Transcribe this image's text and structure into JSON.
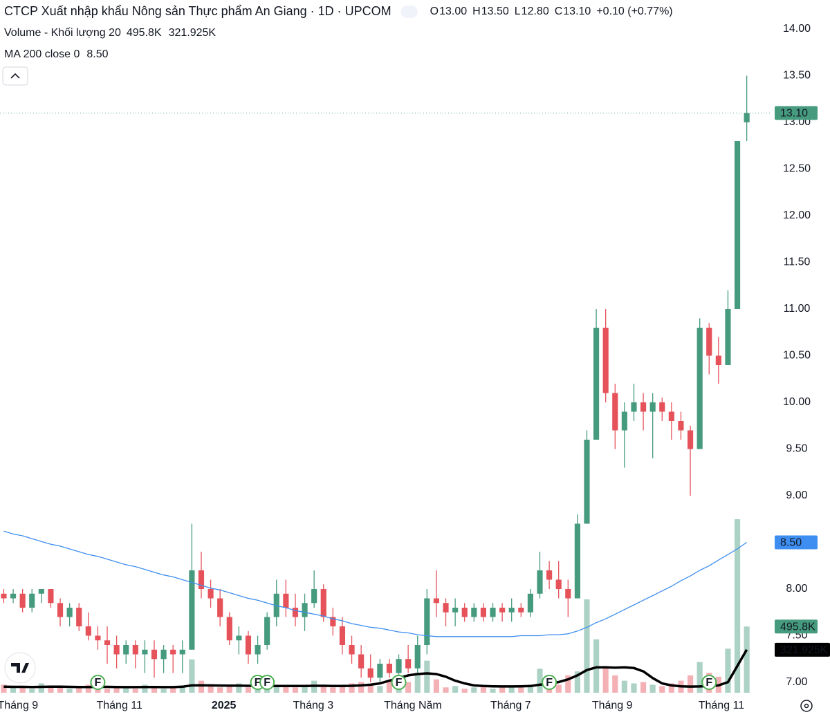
{
  "chart_data": {
    "type": "candlestick",
    "title": "CTCP Xuất nhập khẩu Nông sản Thực phẩm An Giang · 1D · UPCOM",
    "ohlc": [
      {
        "key": "O",
        "value": 13,
        "label": "13.00"
      },
      {
        "key": "H",
        "value": 13.5,
        "label": "13.50"
      },
      {
        "key": "L",
        "value": 12.8,
        "label": "12.80"
      },
      {
        "key": "C",
        "value": 13.1,
        "label": "13.10"
      }
    ],
    "change_label": "+0.10 (+0.77%)",
    "colors": {
      "up": "#469b7e",
      "down": "#e5525a",
      "ma": "#3d8ef0",
      "vol_ma": "#000000"
    },
    "open": [
      7.95,
      7.9,
      7.95,
      7.8,
      7.95,
      8.0,
      7.85,
      7.7,
      7.8,
      7.6,
      7.5,
      7.45,
      7.4,
      7.3,
      7.4,
      7.3,
      7.35,
      7.25,
      7.35,
      7.3,
      7.35,
      8.2,
      8.0,
      7.9,
      7.7,
      7.45,
      7.5,
      7.3,
      7.4,
      7.7,
      7.95,
      7.8,
      7.7,
      7.85,
      8.0,
      7.7,
      7.6,
      7.4,
      7.3,
      7.15,
      7.05,
      7.2,
      7.1,
      7.25,
      7.15,
      7.4,
      7.9,
      7.85,
      7.75,
      7.8,
      7.7,
      7.8,
      7.7,
      7.8,
      7.75,
      7.8,
      7.75,
      7.95,
      8.2,
      8.1,
      8.0,
      7.9,
      8.7,
      9.6,
      10.8,
      10.1,
      9.7,
      9.9,
      10.0,
      9.9,
      10.0,
      9.9,
      9.8,
      9.7,
      9.5,
      10.8,
      10.5,
      10.4,
      11.0,
      13
    ],
    "high": [
      8.0,
      8.0,
      8.0,
      8.0,
      8.0,
      8.0,
      7.9,
      7.85,
      7.85,
      7.75,
      7.6,
      7.6,
      7.5,
      7.45,
      7.45,
      7.45,
      7.45,
      7.4,
      7.4,
      7.45,
      8.7,
      8.4,
      8.1,
      8.0,
      7.75,
      7.6,
      7.55,
      7.5,
      7.75,
      8.1,
      8.1,
      7.95,
      7.95,
      8.2,
      8.05,
      7.8,
      7.7,
      7.5,
      7.4,
      7.3,
      7.25,
      7.25,
      7.3,
      7.4,
      7.5,
      8.0,
      8.2,
      7.9,
      7.9,
      7.85,
      7.85,
      7.85,
      7.85,
      7.85,
      7.9,
      7.85,
      8.0,
      8.4,
      8.3,
      8.3,
      8.1,
      8.8,
      9.7,
      11.0,
      11.0,
      10.2,
      10.0,
      10.2,
      10.1,
      10.1,
      10.05,
      10.0,
      9.9,
      9.75,
      10.9,
      10.85,
      10.7,
      11.2,
      12.8,
      13.5
    ],
    "low": [
      7.85,
      7.85,
      7.75,
      7.75,
      7.85,
      7.8,
      7.6,
      7.6,
      7.55,
      7.45,
      7.35,
      7.2,
      7.15,
      7.2,
      7.15,
      7.1,
      7.05,
      7.1,
      7.1,
      7.1,
      7.35,
      7.9,
      7.8,
      7.6,
      7.4,
      7.3,
      7.2,
      7.2,
      7.35,
      7.6,
      7.7,
      7.6,
      7.55,
      7.8,
      7.65,
      7.5,
      7.3,
      7.2,
      7.05,
      7.0,
      7.0,
      7.05,
      7.05,
      7.1,
      7.1,
      7.3,
      7.7,
      7.6,
      7.6,
      7.65,
      7.65,
      7.65,
      7.65,
      7.65,
      7.65,
      7.7,
      7.7,
      7.9,
      8.0,
      7.9,
      7.7,
      7.9,
      8.7,
      9.6,
      10.0,
      9.5,
      9.3,
      9.8,
      9.7,
      9.4,
      9.8,
      9.6,
      9.6,
      9.0,
      9.5,
      10.3,
      10.2,
      10.4,
      11.0,
      12.8
    ],
    "close": [
      7.9,
      7.95,
      7.8,
      7.95,
      8.0,
      7.85,
      7.7,
      7.8,
      7.6,
      7.5,
      7.45,
      7.4,
      7.3,
      7.4,
      7.3,
      7.35,
      7.25,
      7.35,
      7.3,
      7.35,
      8.2,
      8.0,
      7.9,
      7.7,
      7.45,
      7.5,
      7.3,
      7.4,
      7.7,
      7.95,
      7.8,
      7.7,
      7.85,
      8.0,
      7.7,
      7.6,
      7.4,
      7.3,
      7.15,
      7.05,
      7.2,
      7.1,
      7.25,
      7.15,
      7.4,
      7.9,
      7.85,
      7.75,
      7.8,
      7.7,
      7.8,
      7.7,
      7.8,
      7.75,
      7.8,
      7.75,
      7.95,
      8.2,
      8.1,
      8.0,
      7.9,
      8.7,
      9.6,
      10.8,
      10.1,
      9.7,
      9.9,
      10.0,
      9.9,
      10.0,
      9.9,
      9.8,
      9.7,
      9.5,
      10.8,
      10.5,
      10.4,
      11.0,
      12.8,
      13.1
    ],
    "volume_name": "Volume - Khối lượng 20",
    "volume": [
      60000,
      40000,
      50000,
      30000,
      70000,
      40000,
      50000,
      30000,
      40000,
      60000,
      50000,
      30000,
      40000,
      50000,
      30000,
      60000,
      40000,
      30000,
      50000,
      40000,
      250000,
      90000,
      60000,
      40000,
      50000,
      70000,
      40000,
      50000,
      80000,
      60000,
      50000,
      40000,
      60000,
      90000,
      50000,
      40000,
      60000,
      70000,
      80000,
      60000,
      50000,
      90000,
      120000,
      80000,
      150000,
      240000,
      100000,
      40000,
      50000,
      30000,
      40000,
      50000,
      30000,
      40000,
      50000,
      40000,
      60000,
      180000,
      90000,
      60000,
      130000,
      160000,
      700000,
      400000,
      200000,
      130000,
      90000,
      70000,
      80000,
      60000,
      50000,
      70000,
      90000,
      130000,
      230000,
      150000,
      120000,
      330000,
      1300000,
      495800
    ],
    "volume_last_label": "495.8K",
    "volume_ma": [
      45000,
      44000,
      44000,
      43000,
      44000,
      45000,
      45000,
      44000,
      43000,
      43000,
      44000,
      44000,
      43000,
      42000,
      42000,
      43000,
      43000,
      42000,
      42000,
      45000,
      55000,
      56000,
      55000,
      54000,
      53000,
      53000,
      52000,
      52000,
      51000,
      50000,
      50000,
      50000,
      51000,
      52000,
      52000,
      51000,
      51000,
      52000,
      55000,
      60000,
      70000,
      90000,
      110000,
      130000,
      140000,
      145000,
      140000,
      120000,
      90000,
      70000,
      55000,
      50000,
      48000,
      47000,
      47000,
      48000,
      50000,
      60000,
      70000,
      80000,
      100000,
      130000,
      170000,
      190000,
      190000,
      188000,
      190000,
      185000,
      160000,
      110000,
      70000,
      55000,
      48000,
      46000,
      47000,
      50000,
      55000,
      80000,
      200000,
      321925
    ],
    "volume_ma_last_label": "321.925K",
    "ma_name": "MA 200 close 0",
    "ma": [
      8.62,
      8.59,
      8.57,
      8.54,
      8.51,
      8.48,
      8.46,
      8.43,
      8.4,
      8.37,
      8.35,
      8.32,
      8.29,
      8.26,
      8.24,
      8.21,
      8.18,
      8.15,
      8.13,
      8.1,
      8.07,
      8.04,
      8.01,
      7.99,
      7.96,
      7.93,
      7.9,
      7.88,
      7.85,
      7.82,
      7.8,
      7.77,
      7.75,
      7.73,
      7.71,
      7.68,
      7.66,
      7.63,
      7.61,
      7.59,
      7.58,
      7.56,
      7.54,
      7.53,
      7.51,
      7.5,
      7.49,
      7.49,
      7.49,
      7.49,
      7.49,
      7.49,
      7.49,
      7.49,
      7.49,
      7.5,
      7.5,
      7.5,
      7.51,
      7.51,
      7.52,
      7.55,
      7.59,
      7.64,
      7.68,
      7.73,
      7.78,
      7.83,
      7.88,
      7.93,
      7.98,
      8.03,
      8.09,
      8.14,
      8.2,
      8.25,
      8.31,
      8.37,
      8.43,
      8.5
    ],
    "ma_last_label": "8.50",
    "events": [
      {
        "index": 10,
        "label": "F"
      },
      {
        "index": 27,
        "label": "F"
      },
      {
        "index": 28,
        "label": "F"
      },
      {
        "index": 42,
        "label": "F"
      },
      {
        "index": 58,
        "label": "F"
      },
      {
        "index": 75,
        "label": "F"
      }
    ],
    "xlim": [
      -0.4,
      81.6
    ],
    "xticks": [
      {
        "value": 1.5,
        "label": "Tháng 9"
      },
      {
        "value": 12.3,
        "label": "Tháng 11"
      },
      {
        "value": 23.4,
        "label": "2025"
      },
      {
        "value": 32.9,
        "label": "Tháng 3"
      },
      {
        "value": 43.5,
        "label": "Tháng Năm"
      },
      {
        "value": 53.9,
        "label": "Tháng 7"
      },
      {
        "value": 64.7,
        "label": "Tháng 9"
      },
      {
        "value": 76.3,
        "label": "Tháng 11"
      }
    ],
    "ylim": [
      7,
      14
    ],
    "yticks": [
      {
        "value": 7,
        "label": "7.00"
      },
      {
        "value": 7.5,
        "label": "7.50"
      },
      {
        "value": 8,
        "label": "8.00"
      },
      {
        "value": 8.5,
        "label": "8.50"
      },
      {
        "value": 9,
        "label": "9.00"
      },
      {
        "value": 9.5,
        "label": "9.50"
      },
      {
        "value": 10,
        "label": "10.00"
      },
      {
        "value": 10.5,
        "label": "10.50"
      },
      {
        "value": 11,
        "label": "11.00"
      },
      {
        "value": 11.5,
        "label": "11.50"
      },
      {
        "value": 12,
        "label": "12.00"
      },
      {
        "value": 12.5,
        "label": "12.50"
      },
      {
        "value": 13,
        "label": "13.00"
      },
      {
        "value": 13.5,
        "label": "13.50"
      },
      {
        "value": 14,
        "label": "14.00"
      }
    ],
    "volume_lim": [
      0,
      1300000
    ]
  }
}
